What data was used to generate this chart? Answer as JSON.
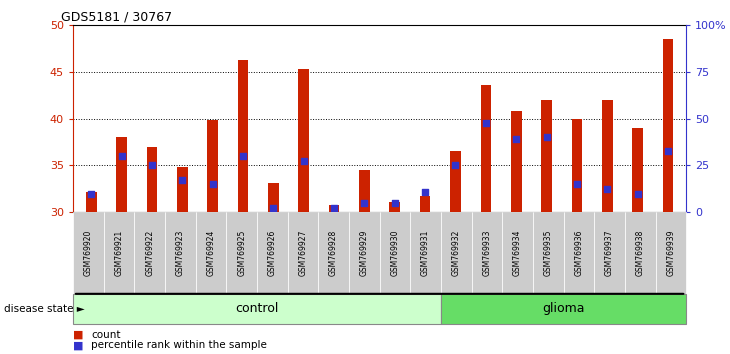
{
  "title": "GDS5181 / 30767",
  "samples": [
    "GSM769920",
    "GSM769921",
    "GSM769922",
    "GSM769923",
    "GSM769924",
    "GSM769925",
    "GSM769926",
    "GSM769927",
    "GSM769928",
    "GSM769929",
    "GSM769930",
    "GSM769931",
    "GSM769932",
    "GSM769933",
    "GSM769934",
    "GSM769935",
    "GSM769936",
    "GSM769937",
    "GSM769938",
    "GSM769939"
  ],
  "counts": [
    32.2,
    38.0,
    37.0,
    34.8,
    39.8,
    46.2,
    33.1,
    45.3,
    30.8,
    34.5,
    31.1,
    31.8,
    36.5,
    43.6,
    40.8,
    42.0,
    40.0,
    42.0,
    39.0,
    48.5
  ],
  "percentile_ranks": [
    32.0,
    36.0,
    35.0,
    33.5,
    33.0,
    36.0,
    30.5,
    35.5,
    30.5,
    31.0,
    31.0,
    32.2,
    35.0,
    39.5,
    37.8,
    38.0,
    33.0,
    32.5,
    32.0,
    36.5
  ],
  "control_count": 12,
  "glioma_count": 8,
  "control_label": "control",
  "glioma_label": "glioma",
  "disease_state_label": "disease state",
  "legend_count": "count",
  "legend_percentile": "percentile rank within the sample",
  "bar_color": "#cc2200",
  "dot_color": "#3333cc",
  "ymin": 30,
  "ymax": 50,
  "yticks_left": [
    30,
    35,
    40,
    45,
    50
  ],
  "yticks_right": [
    0,
    25,
    50,
    75,
    100
  ],
  "yticks_right_labels": [
    "0",
    "25",
    "50",
    "75",
    "100%"
  ],
  "control_bg": "#ccffcc",
  "glioma_bg": "#66dd66",
  "xticklabel_bg": "#cccccc",
  "bar_width": 0.35
}
